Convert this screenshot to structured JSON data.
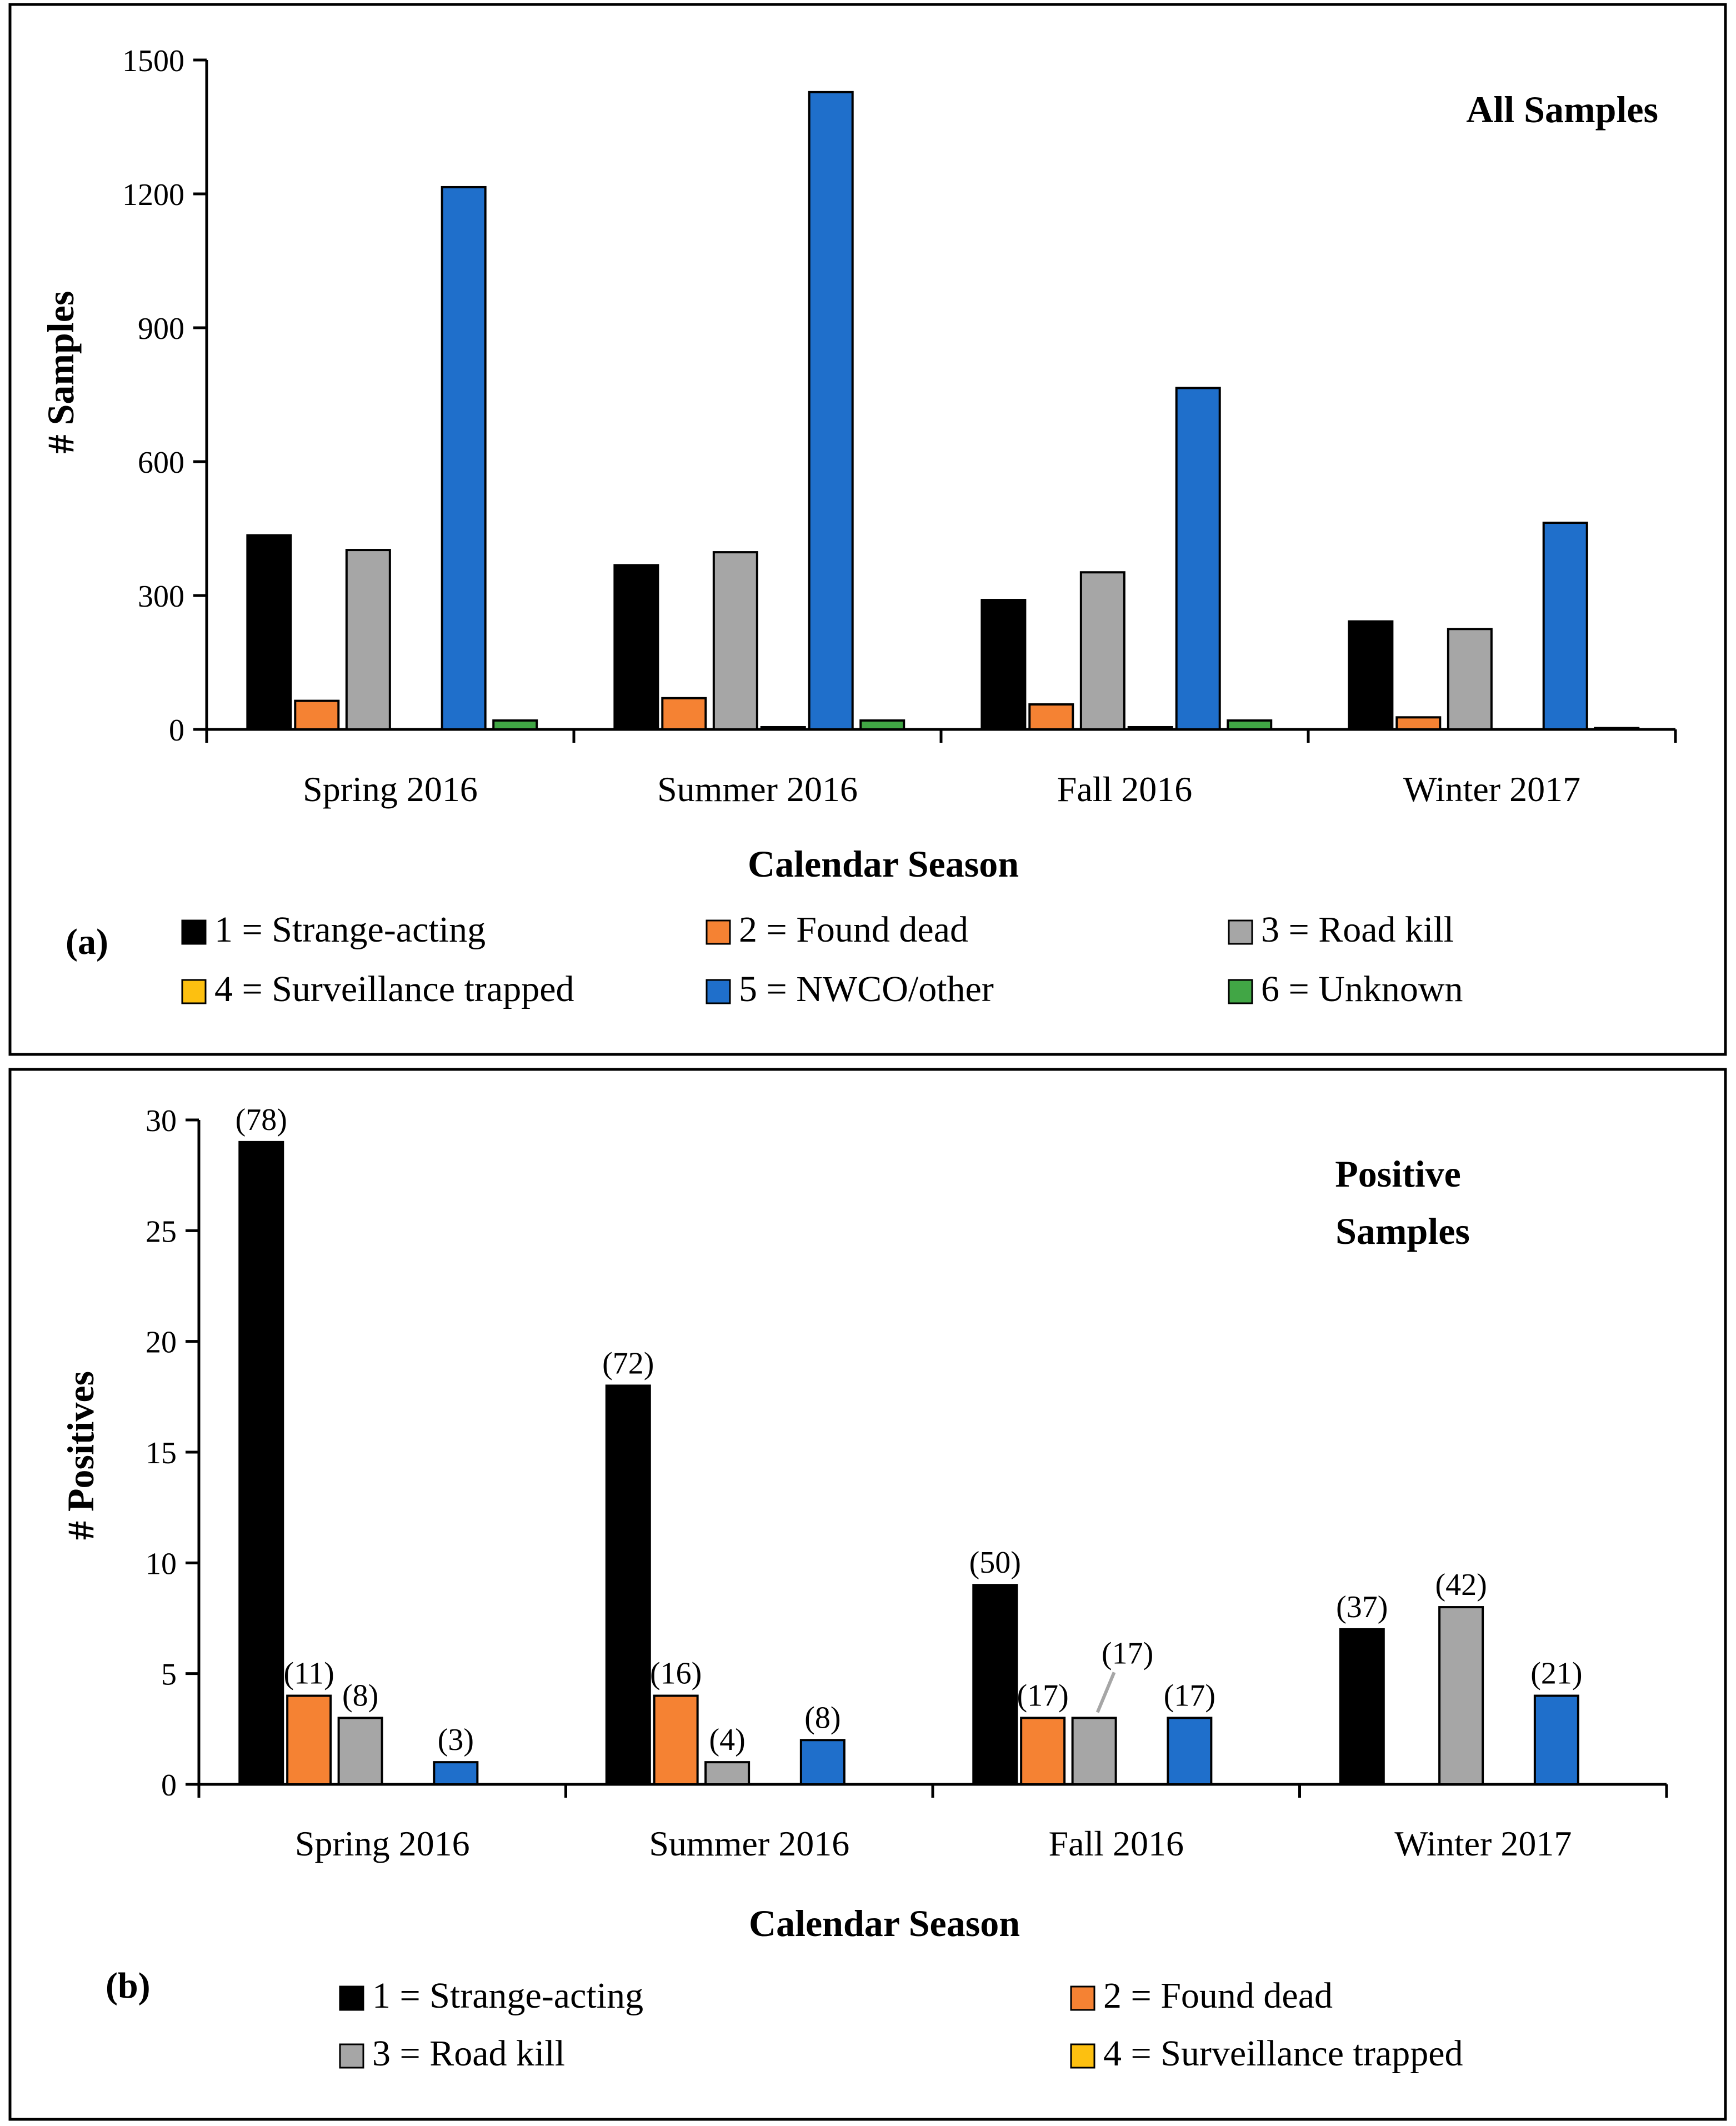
{
  "colors": {
    "strange_acting": "#000000",
    "found_dead": "#f58233",
    "road_kill": "#a6a6a6",
    "surveillance_trapped": "#fdc010",
    "nwco_other": "#1f6fcb",
    "unknown": "#41a645"
  },
  "chart_data": [
    {
      "id": "a",
      "type": "bar",
      "panel_label": "(a)",
      "title": "All Samples",
      "xlabel": "Calendar Season",
      "ylabel": "# Samples",
      "ylim": [
        0,
        1500
      ],
      "yticks": [
        0,
        300,
        600,
        900,
        1200,
        1500
      ],
      "ytick_labels": [
        "0",
        "300",
        "600",
        "900",
        "1200",
        "1500"
      ],
      "categories": [
        "Spring 2016",
        "Summer 2016",
        "Fall 2016",
        "Winter 2017"
      ],
      "series": [
        {
          "key": "strange_acting",
          "name": "1 = Strange-acting",
          "values": [
            435,
            368,
            290,
            242
          ]
        },
        {
          "key": "found_dead",
          "name": "2 = Found dead",
          "values": [
            64,
            70,
            56,
            27
          ]
        },
        {
          "key": "road_kill",
          "name": "3 = Road kill",
          "values": [
            402,
            397,
            352,
            225
          ]
        },
        {
          "key": "surveillance_trapped",
          "name": "4 = Surveillance trapped",
          "values": [
            0,
            5,
            5,
            0
          ]
        },
        {
          "key": "nwco_other",
          "name": "5 = NWCO/other",
          "values": [
            1215,
            1428,
            765,
            463
          ]
        },
        {
          "key": "unknown",
          "name": "6 = Unknown",
          "values": [
            20,
            20,
            20,
            3
          ]
        }
      ],
      "grid": false,
      "legend_position": "bottom"
    },
    {
      "id": "b",
      "type": "bar",
      "panel_label": "(b)",
      "title": "Positive Samples",
      "title_lines": [
        "Positive",
        "Samples"
      ],
      "xlabel": "Calendar Season",
      "ylabel": "# Positives",
      "ylim": [
        0,
        30
      ],
      "yticks": [
        0,
        5,
        10,
        15,
        20,
        25,
        30
      ],
      "ytick_labels": [
        "0",
        "5",
        "10",
        "15",
        "20",
        "25",
        "30"
      ],
      "categories": [
        "Spring 2016",
        "Summer 2016",
        "Fall 2016",
        "Winter 2017"
      ],
      "series": [
        {
          "key": "strange_acting",
          "name": "1 = Strange-acting",
          "values": [
            29,
            18,
            9,
            7
          ],
          "labels": [
            "(78)",
            "(72)",
            "(50)",
            "(37)"
          ]
        },
        {
          "key": "found_dead",
          "name": "2 = Found dead",
          "values": [
            4,
            4,
            3,
            0
          ],
          "labels": [
            "(11)",
            "(16)",
            "(17)",
            ""
          ]
        },
        {
          "key": "road_kill",
          "name": "3 = Road kill",
          "values": [
            3,
            1,
            3,
            8
          ],
          "labels": [
            "(8)",
            "(4)",
            "(17)",
            "(42)"
          ]
        },
        {
          "key": "surveillance_trapped",
          "name": "4 = Surveillance trapped",
          "values": [
            0,
            0,
            0,
            0
          ],
          "labels": [
            "",
            "",
            "",
            ""
          ]
        },
        {
          "key": "nwco_other",
          "values": [
            1,
            2,
            3,
            4
          ],
          "labels": [
            "(3)",
            "(8)",
            "(17)",
            "(21)"
          ]
        }
      ],
      "grid": false,
      "legend_position": "bottom"
    }
  ]
}
